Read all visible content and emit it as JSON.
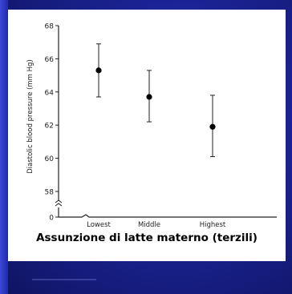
{
  "caption": "Assunzione di latte materno (terzili)",
  "chart_data": {
    "type": "scatter",
    "title": "",
    "xlabel": "",
    "ylabel": "Diastolic blood pressure (mm Hg)",
    "categories": [
      "Lowest",
      "Middle",
      "Highest"
    ],
    "series": [
      {
        "values": [
          65.3,
          63.7,
          61.9
        ],
        "error_low": [
          63.7,
          62.2,
          60.1
        ],
        "error_high": [
          66.9,
          65.3,
          63.8
        ]
      }
    ],
    "y_ticks": [
      "0",
      "58",
      "60",
      "62",
      "64",
      "66",
      "68"
    ],
    "ylim": [
      57,
      68
    ],
    "axis_break": true,
    "grid": false,
    "colors": {
      "marker": "#000000",
      "axis": "#222222",
      "background": "#ffffff",
      "slide_bg": "#1b2395"
    }
  }
}
